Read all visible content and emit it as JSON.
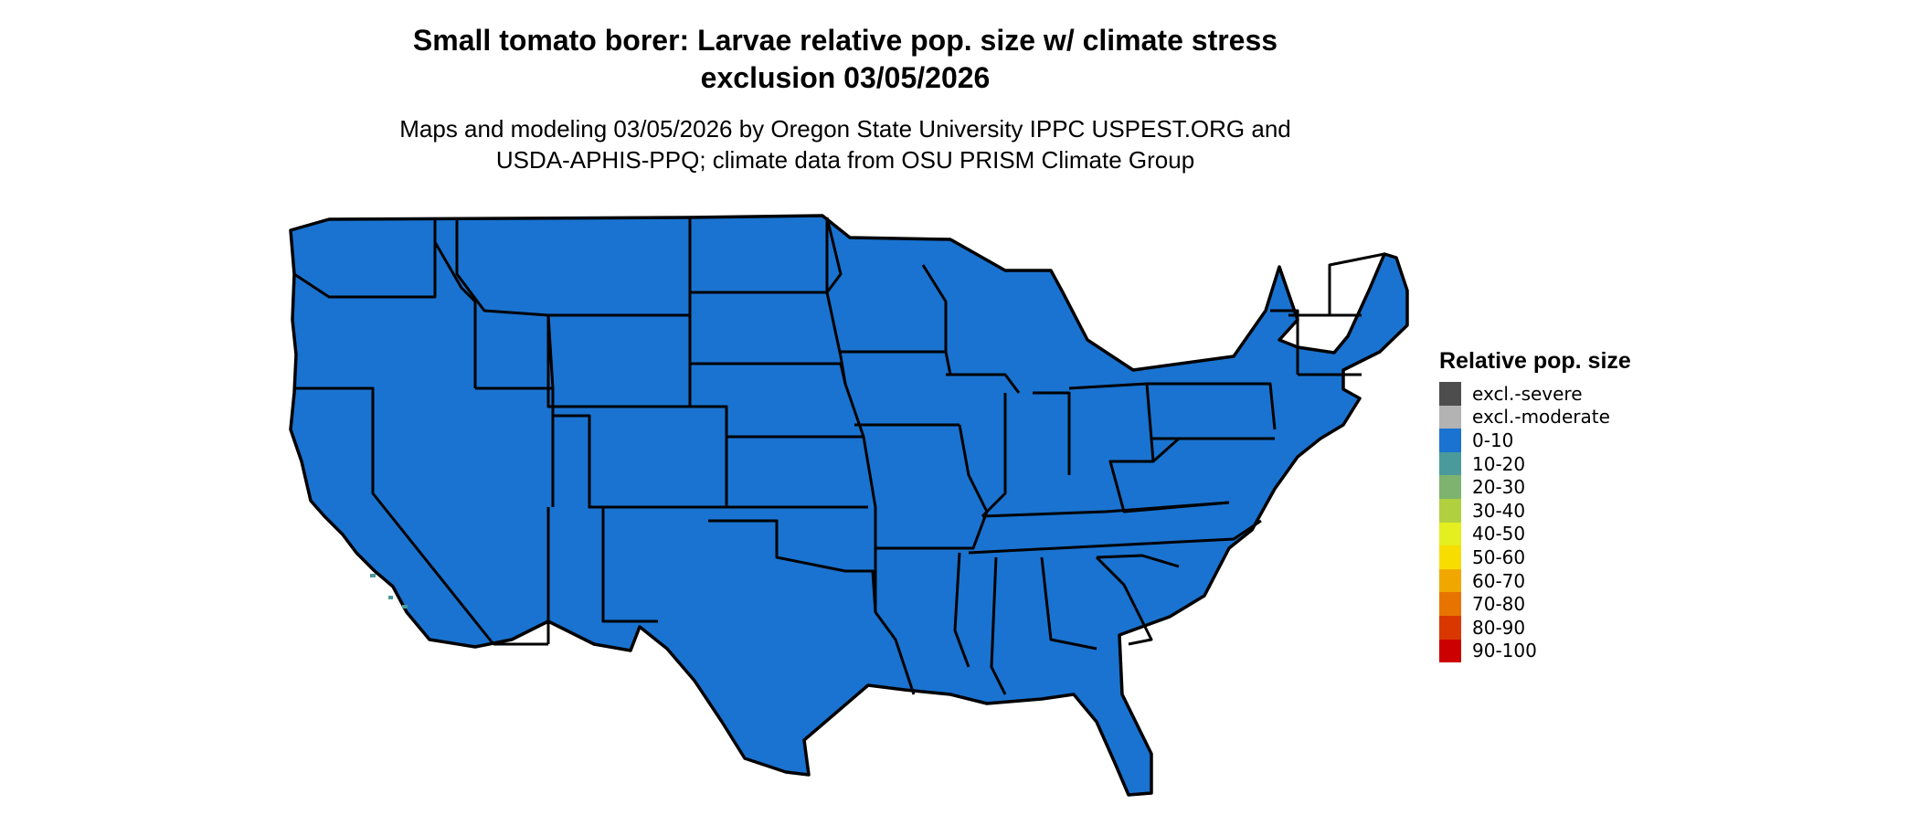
{
  "title": {
    "line1": "Small tomato borer: Larvae relative pop. size w/ climate stress",
    "line2": "exclusion 03/05/2026"
  },
  "subtitle": {
    "line1": "Maps and modeling 03/05/2026 by Oregon State University IPPC USPEST.ORG and",
    "line2": "USDA-APHIS-PPQ; climate data from OSU PRISM Climate Group"
  },
  "legend": {
    "title": "Relative pop. size",
    "items": [
      {
        "label": "excl.-severe",
        "color": "#4d4d4d"
      },
      {
        "label": "excl.-moderate",
        "color": "#b3b3b3"
      },
      {
        "label": "0-10",
        "color": "#1a73d0"
      },
      {
        "label": "10-20",
        "color": "#4a9a9c"
      },
      {
        "label": "20-30",
        "color": "#7db36e"
      },
      {
        "label": "30-40",
        "color": "#b0d040"
      },
      {
        "label": "40-50",
        "color": "#e5ee1e"
      },
      {
        "label": "50-60",
        "color": "#f8de00"
      },
      {
        "label": "60-70",
        "color": "#f0a800"
      },
      {
        "label": "70-80",
        "color": "#e87400"
      },
      {
        "label": "80-90",
        "color": "#d83800"
      },
      {
        "label": "90-100",
        "color": "#cc0000"
      }
    ]
  },
  "map": {
    "region": "contiguous-united-states",
    "colors": {
      "border": "#000000",
      "lake": "#ffffff"
    }
  }
}
